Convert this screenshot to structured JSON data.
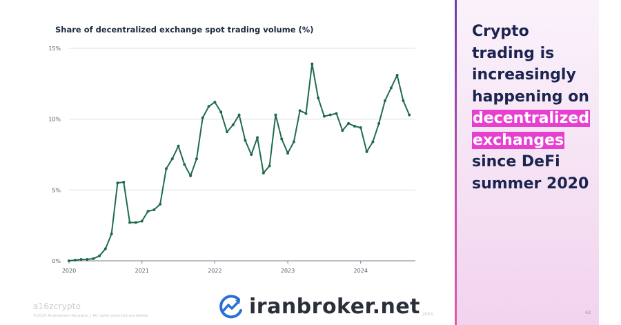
{
  "slide": {
    "brand": "a16zcrypto",
    "copyright": "©2024 Andreessen Horowitz. | All rights reserved worldwide.",
    "footer_year": "2024.",
    "page_number": "42",
    "watermark": "iranbroker.net",
    "headline": {
      "line1": "Crypto",
      "line2": "trading is",
      "line3": "increasingly",
      "line4": "happening on",
      "highlight1": "decentralized",
      "highlight2": "exchanges",
      "line7": "since DeFi",
      "line8": "summer 2020"
    },
    "colors": {
      "line": "#1f6b4a",
      "highlight": "#e83fd1",
      "headline": "#1b2450",
      "panel": "#f6e3f4"
    }
  },
  "chart_data": {
    "type": "line",
    "title": "Share of decentralized exchange spot trading volume (%)",
    "xlabel": "",
    "ylabel": "",
    "ylim": [
      0,
      15
    ],
    "xlim": [
      2020,
      2024.75
    ],
    "y_ticks": [
      0,
      5,
      10,
      15
    ],
    "y_tick_labels": [
      "0%",
      "5%",
      "10%",
      "15%"
    ],
    "x_ticks": [
      2020,
      2021,
      2022,
      2023,
      2024
    ],
    "x_tick_labels": [
      "2020",
      "2021",
      "2022",
      "2023",
      "2024"
    ],
    "grid": true,
    "series": [
      {
        "values": [
          0.0,
          0.05,
          0.1,
          0.1,
          0.15,
          0.35,
          0.85,
          1.9,
          5.5,
          5.55,
          2.7,
          2.7,
          2.8,
          3.5,
          3.6,
          4.0,
          6.5,
          7.2,
          8.1,
          6.8,
          6.0,
          7.2,
          10.1,
          10.9,
          11.2,
          10.5,
          9.1,
          9.6,
          10.3,
          8.5,
          7.5,
          8.7,
          6.2,
          6.7,
          10.3,
          8.6,
          7.6,
          8.4,
          10.6,
          10.4,
          13.9,
          11.5,
          10.2,
          10.3,
          10.4,
          9.2,
          9.7,
          9.5,
          9.4,
          7.7,
          8.4,
          9.7,
          11.3,
          12.2,
          13.1,
          11.3,
          10.3
        ]
      }
    ]
  }
}
